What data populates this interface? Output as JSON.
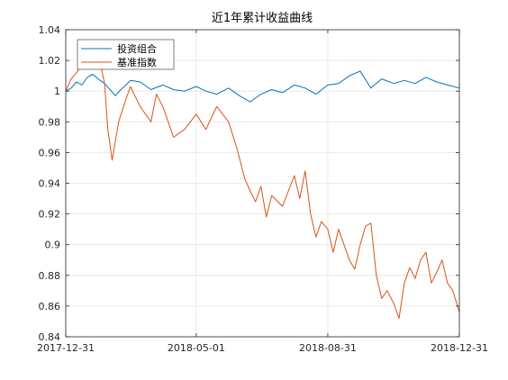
{
  "chart_data": {
    "type": "line",
    "title": "近1年累计收益曲线",
    "xlabel": "",
    "ylabel": "",
    "x_ticks": [
      "2017-12-31",
      "2018-05-01",
      "2018-08-31",
      "2018-12-31"
    ],
    "xlim": [
      "2017-12-31",
      "2018-12-31"
    ],
    "ylim": [
      0.84,
      1.04
    ],
    "y_ticks": [
      "0.84",
      "0.86",
      "0.88",
      "0.9",
      "0.92",
      "0.94",
      "0.96",
      "0.98",
      "1",
      "1.02",
      "1.04"
    ],
    "grid": true,
    "legend_position": "top-left",
    "series": [
      {
        "name": "投资组合",
        "color": "#0072BD",
        "x": [
          "2017-12-31",
          "2018-01-05",
          "2018-01-10",
          "2018-01-15",
          "2018-01-20",
          "2018-01-25",
          "2018-01-30",
          "2018-02-05",
          "2018-02-10",
          "2018-02-15",
          "2018-02-20",
          "2018-02-25",
          "2018-03-01",
          "2018-03-10",
          "2018-03-20",
          "2018-03-31",
          "2018-04-10",
          "2018-04-20",
          "2018-05-01",
          "2018-05-10",
          "2018-05-20",
          "2018-05-31",
          "2018-06-10",
          "2018-06-20",
          "2018-06-30",
          "2018-07-10",
          "2018-07-20",
          "2018-07-31",
          "2018-08-10",
          "2018-08-20",
          "2018-08-31",
          "2018-09-10",
          "2018-09-20",
          "2018-09-30",
          "2018-10-10",
          "2018-10-20",
          "2018-10-31",
          "2018-11-10",
          "2018-11-20",
          "2018-11-30",
          "2018-12-10",
          "2018-12-20",
          "2018-12-31"
        ],
        "values": [
          1.0,
          1.002,
          1.006,
          1.004,
          1.009,
          1.011,
          1.008,
          1.005,
          1.001,
          0.997,
          1.001,
          1.004,
          1.007,
          1.006,
          1.001,
          1.004,
          1.001,
          1.0,
          1.003,
          1.0,
          0.998,
          1.002,
          0.997,
          0.993,
          0.998,
          1.001,
          0.999,
          1.004,
          1.002,
          0.998,
          1.004,
          1.005,
          1.01,
          1.013,
          1.002,
          1.008,
          1.005,
          1.007,
          1.005,
          1.009,
          1.006,
          1.004,
          1.002
        ]
      },
      {
        "name": "基准指数",
        "color": "#D95319",
        "x": [
          "2017-12-31",
          "2018-01-05",
          "2018-01-10",
          "2018-01-15",
          "2018-01-20",
          "2018-01-25",
          "2018-01-30",
          "2018-02-05",
          "2018-02-08",
          "2018-02-12",
          "2018-02-18",
          "2018-02-25",
          "2018-03-01",
          "2018-03-10",
          "2018-03-20",
          "2018-03-25",
          "2018-03-31",
          "2018-04-10",
          "2018-04-20",
          "2018-05-01",
          "2018-05-10",
          "2018-05-20",
          "2018-05-31",
          "2018-06-08",
          "2018-06-15",
          "2018-06-20",
          "2018-06-25",
          "2018-06-30",
          "2018-07-05",
          "2018-07-10",
          "2018-07-20",
          "2018-07-31",
          "2018-08-05",
          "2018-08-10",
          "2018-08-15",
          "2018-08-20",
          "2018-08-25",
          "2018-08-31",
          "2018-09-05",
          "2018-09-10",
          "2018-09-15",
          "2018-09-20",
          "2018-09-25",
          "2018-09-30",
          "2018-10-05",
          "2018-10-10",
          "2018-10-15",
          "2018-10-20",
          "2018-10-25",
          "2018-10-31",
          "2018-11-05",
          "2018-11-10",
          "2018-11-15",
          "2018-11-20",
          "2018-11-25",
          "2018-11-30",
          "2018-12-05",
          "2018-12-10",
          "2018-12-15",
          "2018-12-20",
          "2018-12-25",
          "2018-12-31"
        ],
        "values": [
          1.0,
          1.008,
          1.012,
          1.018,
          1.022,
          1.02,
          1.025,
          1.005,
          0.975,
          0.955,
          0.98,
          0.995,
          1.003,
          0.99,
          0.98,
          0.998,
          0.99,
          0.97,
          0.975,
          0.985,
          0.975,
          0.99,
          0.98,
          0.962,
          0.943,
          0.935,
          0.928,
          0.938,
          0.918,
          0.932,
          0.925,
          0.945,
          0.93,
          0.948,
          0.92,
          0.905,
          0.915,
          0.91,
          0.895,
          0.91,
          0.9,
          0.89,
          0.884,
          0.9,
          0.912,
          0.914,
          0.88,
          0.865,
          0.87,
          0.862,
          0.852,
          0.875,
          0.885,
          0.878,
          0.89,
          0.895,
          0.875,
          0.882,
          0.89,
          0.875,
          0.87,
          0.856
        ]
      }
    ]
  }
}
